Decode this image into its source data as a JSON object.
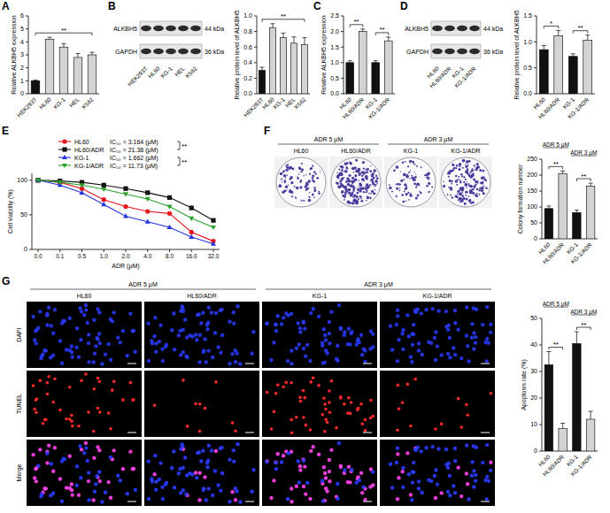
{
  "chart_data": [
    {
      "panel": "A",
      "type": "bar",
      "y_label": "Relative ALKBH5 expression",
      "categories": [
        "HEK293T",
        "HL60",
        "KG-1",
        "HEL",
        "K562"
      ],
      "values": [
        1.0,
        4.2,
        3.6,
        2.8,
        3.0
      ],
      "errors": [
        0.05,
        0.15,
        0.25,
        0.3,
        0.2
      ],
      "colors": [
        "#111111",
        "#d3d3d3",
        "#d3d3d3",
        "#d3d3d3",
        "#d3d3d3"
      ],
      "ylim": [
        0,
        6
      ],
      "yticks": [
        0,
        1,
        2,
        3,
        4,
        5,
        6
      ],
      "grid": false,
      "annotations": [
        {
          "text": "**",
          "from": 0,
          "to": 4
        }
      ]
    },
    {
      "panel": "B",
      "type": "bar",
      "y_label": "Relative protein level of ALKBH5",
      "categories": [
        "HEK293T",
        "HL60",
        "KG-1",
        "HEL",
        "K562"
      ],
      "values": [
        0.3,
        0.85,
        0.72,
        0.65,
        0.63
      ],
      "errors": [
        0.04,
        0.05,
        0.06,
        0.08,
        0.09
      ],
      "colors": [
        "#111111",
        "#d3d3d3",
        "#d3d3d3",
        "#d3d3d3",
        "#d3d3d3"
      ],
      "ylim": [
        0,
        1.0
      ],
      "yticks": [
        {
          "value": 0,
          "label": "0.0"
        },
        {
          "value": 0.2,
          "label": "0.2"
        },
        {
          "value": 0.4,
          "label": "0.4"
        },
        {
          "value": 0.6,
          "label": "0.6"
        },
        {
          "value": 0.8,
          "label": "0.8"
        },
        {
          "value": 1.0,
          "label": "1.0"
        }
      ],
      "grid": false,
      "annotations": [
        {
          "text": "**",
          "from": 0,
          "to": 4
        }
      ]
    },
    {
      "panel": "C",
      "type": "bar",
      "y_label": "Relative ALKBH5 expression",
      "categories": [
        "HL60",
        "HL60/ADR",
        "KG-1",
        "KG-1/ADR"
      ],
      "values": [
        1.0,
        2.0,
        1.0,
        1.7
      ],
      "errors": [
        0.06,
        0.08,
        0.06,
        0.12
      ],
      "colors": [
        "#111111",
        "#d3d3d3",
        "#111111",
        "#d3d3d3"
      ],
      "ylim": [
        0,
        2.5
      ],
      "yticks": [
        {
          "value": 0,
          "label": "0.0"
        },
        {
          "value": 0.5,
          "label": "0.5"
        },
        {
          "value": 1.0,
          "label": "1.0"
        },
        {
          "value": 1.5,
          "label": "1.5"
        },
        {
          "value": 2.0,
          "label": "2.0"
        },
        {
          "value": 2.5,
          "label": "2.5"
        }
      ],
      "grid": false,
      "annotations": [
        {
          "text": "**",
          "from": 0,
          "to": 1
        },
        {
          "text": "**",
          "from": 2,
          "to": 3
        }
      ]
    },
    {
      "panel": "D",
      "type": "bar",
      "y_label": "Relative protein level of ALKBH5",
      "categories": [
        "HL60",
        "HL60/ADR",
        "KG-1",
        "KG-1/ADR"
      ],
      "values": [
        0.85,
        1.12,
        0.72,
        1.03
      ],
      "errors": [
        0.08,
        0.1,
        0.05,
        0.1
      ],
      "colors": [
        "#111111",
        "#d3d3d3",
        "#111111",
        "#d3d3d3"
      ],
      "ylim": [
        0,
        1.5
      ],
      "yticks": [
        {
          "value": 0,
          "label": "0.0"
        },
        {
          "value": 0.5,
          "label": "0.5"
        },
        {
          "value": 1.0,
          "label": "1.0"
        },
        {
          "value": 1.5,
          "label": "1.5"
        }
      ],
      "grid": false,
      "annotations": [
        {
          "text": "*",
          "from": 0,
          "to": 1
        },
        {
          "text": "**",
          "from": 2,
          "to": 3
        }
      ]
    },
    {
      "panel": "E",
      "type": "line",
      "x_label": "ADR (μM)",
      "y_label": "Cell viability (%)",
      "categories": [
        "0.0",
        "0.1",
        "0.5",
        "1.0",
        "2.0",
        "4.0",
        "8.0",
        "16.0",
        "32.0"
      ],
      "ylim": [
        0,
        110
      ],
      "yticks": [
        0,
        50,
        100
      ],
      "grid": false,
      "legend": "top",
      "series": [
        {
          "name": "HL60",
          "ic50_label": "IC₅₀ = 3.164 (μM)",
          "color": "#e8141c",
          "marker": "circle",
          "line_style": "solid",
          "values": [
            100,
            97,
            88,
            72,
            62,
            55,
            52,
            25,
            12
          ]
        },
        {
          "name": "HL60/ADR",
          "ic50_label": "IC₅₀ = 21.38 (μM)",
          "color": "#111111",
          "marker": "square",
          "line_style": "solid",
          "values": [
            100,
            99,
            97,
            93,
            88,
            82,
            75,
            60,
            42
          ]
        },
        {
          "name": "KG-1",
          "ic50_label": "IC₅₀ = 1.662 (μM)",
          "color": "#2233dd",
          "marker": "triangle",
          "line_style": "solid",
          "values": [
            100,
            93,
            82,
            65,
            48,
            40,
            32,
            18,
            8
          ]
        },
        {
          "name": "KG-1/ADR",
          "ic50_label": "IC₅₀ = 11.73 (μM)",
          "color": "#2ca02c",
          "marker": "triangle-down",
          "line_style": "solid",
          "values": [
            100,
            97,
            93,
            87,
            80,
            73,
            62,
            45,
            32
          ]
        }
      ],
      "annotations": [
        {
          "text": "**",
          "from": 0,
          "to": 1
        },
        {
          "text": "**",
          "from": 2,
          "to": 3
        }
      ]
    },
    {
      "panel": "F",
      "type": "bar",
      "y_label": "Colony formation number",
      "categories": [
        "HL60",
        "HL60/ADR",
        "KG-1",
        "KG-1/ADR"
      ],
      "values": [
        95,
        205,
        82,
        165
      ],
      "errors": [
        8,
        8,
        8,
        10
      ],
      "colors": [
        "#111111",
        "#d3d3d3",
        "#111111",
        "#d3d3d3"
      ],
      "ylim": [
        0,
        250
      ],
      "yticks": [
        0,
        50,
        100,
        150,
        200,
        250
      ],
      "grid": false,
      "group_labels": [
        {
          "text": "ADR 5 μM",
          "from": 0,
          "to": 1
        },
        {
          "text": "ADR 3 μM",
          "from": 2,
          "to": 3
        }
      ],
      "annotations": [
        {
          "text": "**",
          "from": 0,
          "to": 1
        },
        {
          "text": "**",
          "from": 2,
          "to": 3
        }
      ]
    },
    {
      "panel": "G",
      "type": "bar",
      "y_label": "Apoptosis rate (%)",
      "categories": [
        "HL60",
        "HL60/ADR",
        "KG-1",
        "KG-1/ADR"
      ],
      "values": [
        32.5,
        8.5,
        40.5,
        12
      ],
      "errors": [
        5,
        2,
        4.5,
        3
      ],
      "colors": [
        "#111111",
        "#d3d3d3",
        "#111111",
        "#d3d3d3"
      ],
      "ylim": [
        0,
        50
      ],
      "yticks": [
        0,
        10,
        20,
        30,
        40,
        50
      ],
      "grid": false,
      "group_labels": [
        {
          "text": "ADR 5 μM",
          "from": 0,
          "to": 1
        },
        {
          "text": "ADR 3 μM",
          "from": 2,
          "to": 3
        }
      ],
      "annotations": [
        {
          "text": "**",
          "from": 0,
          "to": 1
        },
        {
          "text": "**",
          "from": 2,
          "to": 3
        }
      ]
    }
  ],
  "blots": [
    {
      "lanes": [
        "HEK293T",
        "HL60",
        "KG-1",
        "HEL",
        "K562"
      ],
      "bands": [
        {
          "label": "ALKBH5",
          "size": "44 kDa"
        },
        {
          "label": "GAPDH",
          "size": "36 kDa"
        }
      ]
    },
    {
      "lanes": [
        "HL60",
        "HL60/ADR",
        "KG-1",
        "KG-1/ADR"
      ],
      "bands": [
        {
          "label": "ALKBH5",
          "size": "44 kDa"
        },
        {
          "label": "GAPDH",
          "size": "36 kDa"
        }
      ]
    }
  ],
  "dishes": {
    "headers": [
      {
        "text": "ADR 5 μM",
        "from": 0,
        "to": 1
      },
      {
        "text": "ADR 3 μM",
        "from": 2,
        "to": 3
      }
    ],
    "columns": [
      "HL60",
      "HL60/ADR",
      "KG-1",
      "KG-1/ADR"
    ]
  },
  "fluorescence": {
    "headers": [
      {
        "text": "ADR 5 μM",
        "from": 0,
        "to": 1
      },
      {
        "text": "ADR 3 μM",
        "from": 2,
        "to": 3
      }
    ],
    "columns": [
      "HL60",
      "HL60/ADR",
      "KG-1",
      "KG-1/ADR"
    ],
    "rows": [
      "DAPI",
      "TUNEL",
      "Merge"
    ]
  }
}
